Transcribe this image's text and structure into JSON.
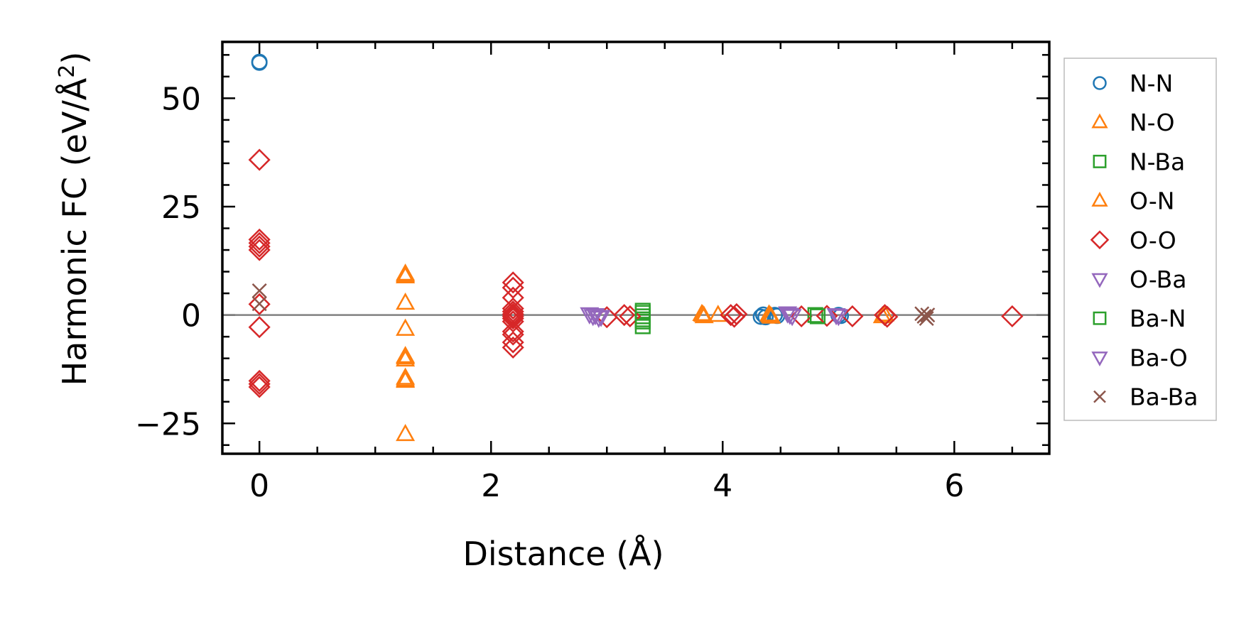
{
  "chart_data": {
    "type": "scatter",
    "xlabel": "Distance (Å)",
    "ylabel_prefix": "Harmonic FC (eV/Å",
    "ylabel_sup": "2",
    "ylabel_suffix": ")",
    "xlim": [
      -0.32,
      6.82
    ],
    "ylim": [
      -32,
      63
    ],
    "xticks": [
      0,
      2,
      4,
      6
    ],
    "xtick_labels": [
      "0",
      "2",
      "4",
      "6"
    ],
    "yticks": [
      -25,
      0,
      25,
      50
    ],
    "ytick_labels": [
      "−25",
      "0",
      "25",
      "50"
    ],
    "zero_line": true,
    "legend_position": "outside-right",
    "series": [
      {
        "name": "N-N",
        "marker": "circle",
        "color": "#1f77b4",
        "points": [
          [
            0.0,
            58.4
          ],
          [
            0.0,
            58.2
          ],
          [
            4.33,
            -0.4
          ],
          [
            4.35,
            0.1
          ],
          [
            4.37,
            -0.5
          ],
          [
            4.45,
            0.0
          ],
          [
            4.47,
            -0.2
          ],
          [
            5.0,
            0.0
          ],
          [
            5.02,
            -0.2
          ]
        ]
      },
      {
        "name": "N-O",
        "marker": "triangle-up",
        "color": "#ff7f0e",
        "points": [
          [
            1.26,
            9.5
          ],
          [
            1.26,
            8.9
          ],
          [
            1.26,
            2.8
          ],
          [
            1.26,
            -3.2
          ],
          [
            1.26,
            -9.5
          ],
          [
            1.26,
            -10.3
          ],
          [
            1.26,
            -14.5
          ],
          [
            1.26,
            -15.2
          ],
          [
            1.26,
            -27.5
          ],
          [
            3.82,
            0.2
          ],
          [
            3.84,
            -0.3
          ],
          [
            3.96,
            0.0
          ],
          [
            4.4,
            0.1
          ],
          [
            4.42,
            -0.4
          ]
        ]
      },
      {
        "name": "N-Ba",
        "marker": "square",
        "color": "#2ca02c",
        "points": [
          [
            3.31,
            1.0
          ],
          [
            3.31,
            -0.3
          ],
          [
            3.31,
            -1.5
          ],
          [
            3.31,
            -2.6
          ],
          [
            4.8,
            0.0
          ]
        ]
      },
      {
        "name": "O-N",
        "marker": "triangle-up",
        "color": "#ff7f0e",
        "points": [
          [
            1.26,
            9.2
          ],
          [
            1.26,
            -9.8
          ],
          [
            1.26,
            -14.9
          ],
          [
            3.83,
            0.0
          ],
          [
            4.41,
            -0.2
          ],
          [
            5.38,
            -0.3
          ],
          [
            5.4,
            0.1
          ]
        ]
      },
      {
        "name": "O-O",
        "marker": "diamond",
        "color": "#d62728",
        "points": [
          [
            0.0,
            35.8
          ],
          [
            0.0,
            17.4
          ],
          [
            0.0,
            16.6
          ],
          [
            0.0,
            15.8
          ],
          [
            0.0,
            15.0
          ],
          [
            0.0,
            2.5
          ],
          [
            0.0,
            -2.8
          ],
          [
            0.0,
            -15.2
          ],
          [
            0.0,
            -15.9
          ],
          [
            0.0,
            -16.6
          ],
          [
            2.19,
            7.5
          ],
          [
            2.19,
            6.3
          ],
          [
            2.19,
            4.0
          ],
          [
            2.19,
            1.5
          ],
          [
            2.19,
            0.8
          ],
          [
            2.19,
            0.2
          ],
          [
            2.19,
            -0.3
          ],
          [
            2.19,
            -0.8
          ],
          [
            2.19,
            -1.5
          ],
          [
            2.19,
            -3.8
          ],
          [
            2.19,
            -4.5
          ],
          [
            2.19,
            -6.3
          ],
          [
            2.19,
            -7.5
          ],
          [
            3.0,
            -0.5
          ],
          [
            3.15,
            0.0
          ],
          [
            3.2,
            -0.3
          ],
          [
            4.07,
            0.0
          ],
          [
            4.1,
            -0.4
          ],
          [
            4.12,
            0.2
          ],
          [
            4.68,
            -0.3
          ],
          [
            4.9,
            -0.2
          ],
          [
            5.12,
            -0.3
          ],
          [
            5.4,
            0.0
          ],
          [
            5.42,
            -0.4
          ],
          [
            6.5,
            -0.3
          ]
        ]
      },
      {
        "name": "O-Ba",
        "marker": "triangle-down",
        "color": "#9467bd",
        "points": [
          [
            2.85,
            0.2
          ],
          [
            2.88,
            -0.2
          ],
          [
            2.93,
            -0.6
          ],
          [
            4.56,
            0.4
          ],
          [
            4.6,
            -0.2
          ],
          [
            4.98,
            0.0
          ]
        ]
      },
      {
        "name": "Ba-N",
        "marker": "square",
        "color": "#2ca02c",
        "points": [
          [
            3.31,
            0.5
          ],
          [
            3.31,
            -1.0
          ],
          [
            4.82,
            -0.3
          ]
        ]
      },
      {
        "name": "Ba-O",
        "marker": "triangle-down",
        "color": "#9467bd",
        "points": [
          [
            2.9,
            0.0
          ],
          [
            2.95,
            -0.4
          ],
          [
            4.58,
            0.1
          ],
          [
            5.0,
            -0.2
          ]
        ]
      },
      {
        "name": "Ba-Ba",
        "marker": "x",
        "color": "#8c564b",
        "points": [
          [
            0.0,
            5.6
          ],
          [
            0.0,
            2.6
          ],
          [
            5.72,
            0.3
          ],
          [
            5.74,
            -0.3
          ],
          [
            5.77,
            0.0
          ],
          [
            5.76,
            -0.8
          ]
        ]
      }
    ]
  }
}
